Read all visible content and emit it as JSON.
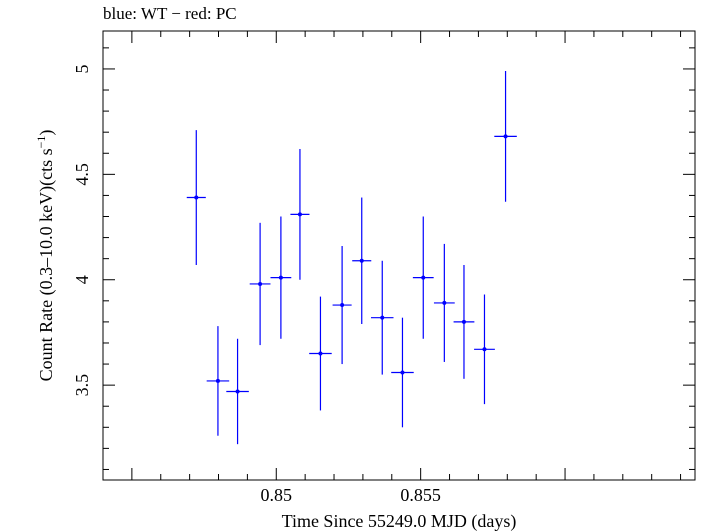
{
  "chart_data": {
    "type": "scatter",
    "title": "blue: WT − red: PC",
    "xlabel": "Time Since 55249.0 MJD (days)",
    "ylabel_main": "Count Rate (0.3–10.0 keV)(cts s",
    "ylabel_sup": "−1",
    "ylabel_close": ")",
    "xlim": [
      0.844,
      0.8645
    ],
    "ylim": [
      3.05,
      5.18
    ],
    "x_ticks": [
      {
        "value": 0.85,
        "label": "0.85"
      },
      {
        "value": 0.855,
        "label": "0.855"
      }
    ],
    "y_ticks": [
      {
        "value": 3.5,
        "label": "3.5"
      },
      {
        "value": 4.0,
        "label": "4"
      },
      {
        "value": 4.5,
        "label": "4.5"
      },
      {
        "value": 5.0,
        "label": "5"
      }
    ],
    "grid": false,
    "color": "#0000ff",
    "series": [
      {
        "x": [
          0.84723,
          0.84798,
          0.84866,
          0.84944,
          0.85016,
          0.85082,
          0.85153,
          0.85228,
          0.85296,
          0.85367,
          0.85437,
          0.85509,
          0.85582,
          0.8565,
          0.85721,
          0.85794
        ],
        "xerr": [
          0.00033,
          0.00039,
          0.00039,
          0.00036,
          0.00036,
          0.00033,
          0.00039,
          0.00033,
          0.00033,
          0.00039,
          0.00039,
          0.00036,
          0.00036,
          0.00036,
          0.00036,
          0.00039
        ],
        "y": [
          4.39,
          3.52,
          3.47,
          3.98,
          4.01,
          4.31,
          3.65,
          3.88,
          4.09,
          3.82,
          3.56,
          4.01,
          3.89,
          3.8,
          3.67,
          4.68
        ],
        "yerr": [
          0.32,
          0.26,
          0.25,
          0.29,
          0.29,
          0.31,
          0.27,
          0.28,
          0.3,
          0.27,
          0.26,
          0.29,
          0.28,
          0.27,
          0.26,
          0.31
        ]
      }
    ]
  }
}
